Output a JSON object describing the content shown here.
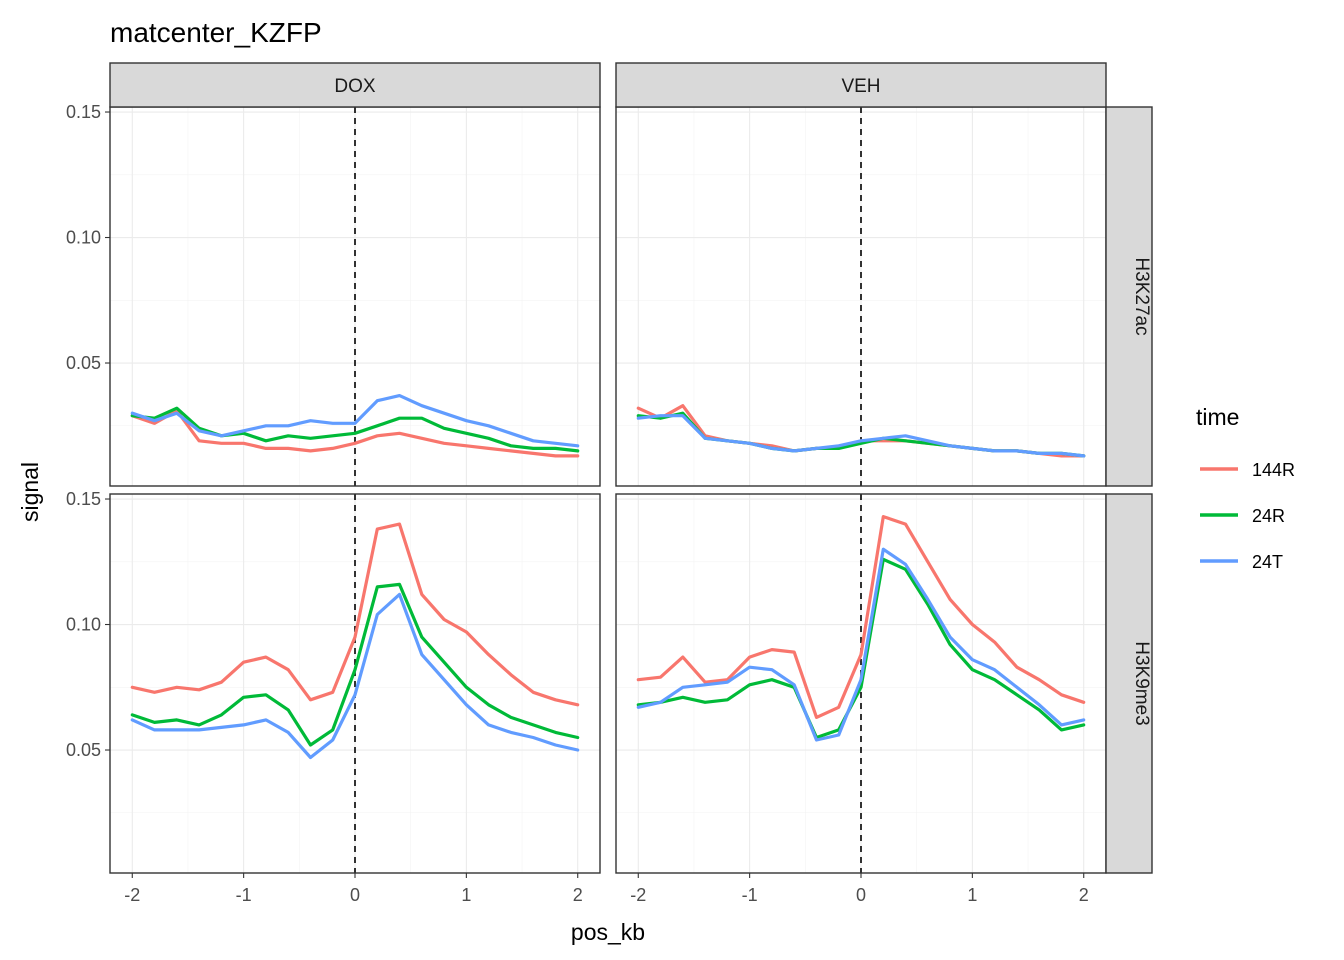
{
  "chart_data": {
    "type": "line",
    "title": "matcenter_KZFP",
    "xlabel": "pos_kb",
    "ylabel": "signal",
    "xlim": [
      -2.2,
      2.2
    ],
    "ylim": [
      0.001,
      0.152
    ],
    "x_ticks": [
      -2,
      -1,
      0,
      1,
      2
    ],
    "x_tick_labels": [
      "-2",
      "-1",
      "0",
      "1",
      "2"
    ],
    "y_ticks": [
      0.05,
      0.1,
      0.15
    ],
    "y_tick_labels": [
      "0.05",
      "0.10",
      "0.15"
    ],
    "reference_line": {
      "x": 0,
      "style": "dashed"
    },
    "facet_columns": [
      "DOX",
      "VEH"
    ],
    "facet_rows": [
      "H3K27ac",
      "H3K9me3"
    ],
    "legend": {
      "title": "time",
      "position": "right",
      "entries": [
        "144R",
        "24R",
        "24T"
      ]
    },
    "colors": {
      "144R": "#F8766D",
      "24R": "#00BA38",
      "24T": "#619CFF"
    },
    "x": [
      -2.0,
      -1.8,
      -1.6,
      -1.4,
      -1.2,
      -1.0,
      -0.8,
      -0.6,
      -0.4,
      -0.2,
      0.0,
      0.2,
      0.4,
      0.6,
      0.8,
      1.0,
      1.2,
      1.4,
      1.6,
      1.8,
      2.0
    ],
    "panels": [
      {
        "column": "DOX",
        "row": "H3K27ac",
        "series": [
          {
            "name": "144R",
            "values": [
              0.029,
              0.026,
              0.031,
              0.019,
              0.018,
              0.018,
              0.016,
              0.016,
              0.015,
              0.016,
              0.018,
              0.021,
              0.022,
              0.02,
              0.018,
              0.017,
              0.016,
              0.015,
              0.014,
              0.013,
              0.013
            ]
          },
          {
            "name": "24R",
            "values": [
              0.029,
              0.028,
              0.032,
              0.024,
              0.021,
              0.022,
              0.019,
              0.021,
              0.02,
              0.021,
              0.022,
              0.025,
              0.028,
              0.028,
              0.024,
              0.022,
              0.02,
              0.017,
              0.016,
              0.016,
              0.015
            ]
          },
          {
            "name": "24T",
            "values": [
              0.03,
              0.027,
              0.03,
              0.023,
              0.021,
              0.023,
              0.025,
              0.025,
              0.027,
              0.026,
              0.026,
              0.035,
              0.037,
              0.033,
              0.03,
              0.027,
              0.025,
              0.022,
              0.019,
              0.018,
              0.017
            ]
          }
        ]
      },
      {
        "column": "VEH",
        "row": "H3K27ac",
        "series": [
          {
            "name": "144R",
            "values": [
              0.032,
              0.028,
              0.033,
              0.021,
              0.019,
              0.018,
              0.017,
              0.015,
              0.016,
              0.016,
              0.019,
              0.019,
              0.019,
              0.018,
              0.017,
              0.016,
              0.015,
              0.015,
              0.014,
              0.013,
              0.013
            ]
          },
          {
            "name": "24R",
            "values": [
              0.029,
              0.028,
              0.03,
              0.02,
              0.019,
              0.018,
              0.016,
              0.015,
              0.016,
              0.016,
              0.018,
              0.02,
              0.019,
              0.018,
              0.017,
              0.016,
              0.015,
              0.015,
              0.014,
              0.014,
              0.013
            ]
          },
          {
            "name": "24T",
            "values": [
              0.028,
              0.029,
              0.029,
              0.02,
              0.019,
              0.018,
              0.016,
              0.015,
              0.016,
              0.017,
              0.019,
              0.02,
              0.021,
              0.019,
              0.017,
              0.016,
              0.015,
              0.015,
              0.014,
              0.014,
              0.013
            ]
          }
        ]
      },
      {
        "column": "DOX",
        "row": "H3K9me3",
        "series": [
          {
            "name": "144R",
            "values": [
              0.075,
              0.073,
              0.075,
              0.074,
              0.077,
              0.085,
              0.087,
              0.082,
              0.07,
              0.073,
              0.095,
              0.138,
              0.14,
              0.112,
              0.102,
              0.097,
              0.088,
              0.08,
              0.073,
              0.07,
              0.068
            ]
          },
          {
            "name": "24R",
            "values": [
              0.064,
              0.061,
              0.062,
              0.06,
              0.064,
              0.071,
              0.072,
              0.066,
              0.052,
              0.058,
              0.082,
              0.115,
              0.116,
              0.095,
              0.085,
              0.075,
              0.068,
              0.063,
              0.06,
              0.057,
              0.055
            ]
          },
          {
            "name": "24T",
            "values": [
              0.062,
              0.058,
              0.058,
              0.058,
              0.059,
              0.06,
              0.062,
              0.057,
              0.047,
              0.054,
              0.072,
              0.104,
              0.112,
              0.088,
              0.078,
              0.068,
              0.06,
              0.057,
              0.055,
              0.052,
              0.05
            ]
          }
        ]
      },
      {
        "column": "VEH",
        "row": "H3K9me3",
        "series": [
          {
            "name": "144R",
            "values": [
              0.078,
              0.079,
              0.087,
              0.077,
              0.078,
              0.087,
              0.09,
              0.089,
              0.063,
              0.067,
              0.088,
              0.143,
              0.14,
              0.125,
              0.11,
              0.1,
              0.093,
              0.083,
              0.078,
              0.072,
              0.069
            ]
          },
          {
            "name": "24R",
            "values": [
              0.068,
              0.069,
              0.071,
              0.069,
              0.07,
              0.076,
              0.078,
              0.075,
              0.055,
              0.058,
              0.075,
              0.126,
              0.122,
              0.108,
              0.092,
              0.082,
              0.078,
              0.072,
              0.066,
              0.058,
              0.06
            ]
          },
          {
            "name": "24T",
            "values": [
              0.067,
              0.069,
              0.075,
              0.076,
              0.077,
              0.083,
              0.082,
              0.076,
              0.054,
              0.056,
              0.078,
              0.13,
              0.124,
              0.11,
              0.095,
              0.086,
              0.082,
              0.075,
              0.068,
              0.06,
              0.062
            ]
          }
        ]
      }
    ]
  }
}
